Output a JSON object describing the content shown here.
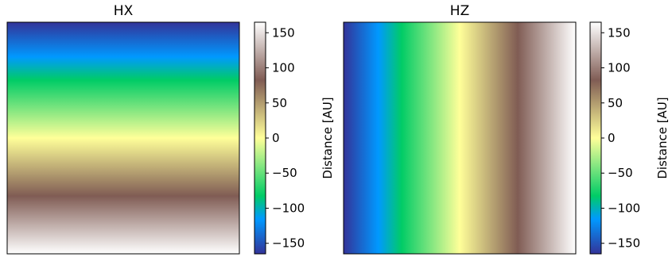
{
  "chart_data": [
    {
      "type": "heatmap",
      "title": "HX",
      "gradient_direction": "vertical",
      "values_top_to_bottom": [
        -160,
        160
      ],
      "colormap": "terrain",
      "axis_ticks": false,
      "colorbar": {
        "label": "Distance [AU]",
        "range": [
          -165,
          165
        ],
        "ticks": [
          -150,
          -100,
          -50,
          0,
          50,
          100,
          150
        ],
        "tick_labels": [
          "−150",
          "−100",
          "−50",
          "0",
          "50",
          "100",
          "150"
        ]
      }
    },
    {
      "type": "heatmap",
      "title": "HZ",
      "gradient_direction": "horizontal",
      "values_left_to_right": [
        -160,
        160
      ],
      "colormap": "terrain",
      "axis_ticks": false,
      "colorbar": {
        "label": "Distance [AU]",
        "range": [
          -165,
          165
        ],
        "ticks": [
          -150,
          -100,
          -50,
          0,
          50,
          100,
          150
        ],
        "tick_labels": [
          "−150",
          "−100",
          "−50",
          "0",
          "50",
          "100",
          "150"
        ]
      }
    }
  ],
  "colormap_stops": [
    {
      "pos": 0.0,
      "color": "#333399"
    },
    {
      "pos": 0.15,
      "color": "#0099ff"
    },
    {
      "pos": 0.25,
      "color": "#00cc66"
    },
    {
      "pos": 0.5,
      "color": "#ffff99"
    },
    {
      "pos": 0.75,
      "color": "#805c54"
    },
    {
      "pos": 1.0,
      "color": "#ffffff"
    }
  ]
}
